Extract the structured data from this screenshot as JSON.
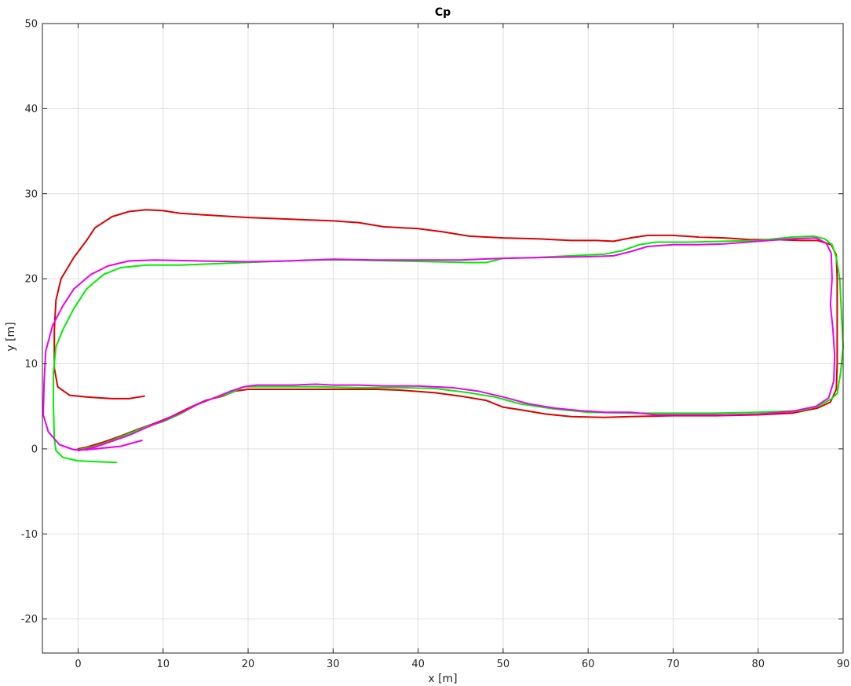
{
  "chart_data": {
    "type": "line",
    "title": "Cp",
    "xlabel": "x [m]",
    "ylabel": "y [m]",
    "xlim": [
      -4.2,
      90
    ],
    "ylim": [
      -24,
      50
    ],
    "xticks": [
      0,
      10,
      20,
      30,
      40,
      50,
      60,
      70,
      80,
      90
    ],
    "yticks": [
      -20,
      -10,
      0,
      10,
      20,
      30,
      40,
      50
    ],
    "grid": true,
    "legend": "none",
    "series": [
      {
        "color": "#dd0000",
        "points": [
          [
            7.8,
            6.2
          ],
          [
            6,
            5.9
          ],
          [
            4,
            5.9
          ],
          [
            1,
            6.1
          ],
          [
            -1,
            6.3
          ],
          [
            -2.4,
            7.3
          ],
          [
            -2.8,
            9.5
          ],
          [
            -2.8,
            14
          ],
          [
            -2.6,
            17.5
          ],
          [
            -2,
            20
          ],
          [
            -0.5,
            22.5
          ],
          [
            1,
            24.5
          ],
          [
            2,
            26
          ],
          [
            4,
            27.3
          ],
          [
            6,
            27.9
          ],
          [
            8,
            28.1
          ],
          [
            10,
            28
          ],
          [
            12,
            27.7
          ],
          [
            15,
            27.5
          ],
          [
            20,
            27.2
          ],
          [
            25,
            27.0
          ],
          [
            30,
            26.8
          ],
          [
            33,
            26.6
          ],
          [
            36,
            26.1
          ],
          [
            40,
            25.9
          ],
          [
            43,
            25.5
          ],
          [
            46,
            25
          ],
          [
            50,
            24.8
          ],
          [
            54,
            24.7
          ],
          [
            58,
            24.5
          ],
          [
            61,
            24.5
          ],
          [
            63,
            24.4
          ],
          [
            65,
            24.8
          ],
          [
            67,
            25.1
          ],
          [
            70,
            25.1
          ],
          [
            73,
            24.9
          ],
          [
            76,
            24.8
          ],
          [
            79,
            24.6
          ],
          [
            82,
            24.6
          ],
          [
            85,
            24.5
          ],
          [
            87,
            24.5
          ],
          [
            88.6,
            24.0
          ],
          [
            89.2,
            22.8
          ],
          [
            89.3,
            20
          ],
          [
            89.3,
            15
          ],
          [
            89.3,
            10
          ],
          [
            89.2,
            7
          ],
          [
            88.5,
            5.5
          ],
          [
            87,
            4.8
          ],
          [
            84,
            4.2
          ],
          [
            80,
            4.0
          ],
          [
            75,
            3.9
          ],
          [
            70,
            3.9
          ],
          [
            65,
            3.8
          ],
          [
            62,
            3.7
          ],
          [
            58,
            3.8
          ],
          [
            55,
            4.1
          ],
          [
            52,
            4.6
          ],
          [
            50,
            4.9
          ],
          [
            48,
            5.7
          ],
          [
            45,
            6.2
          ],
          [
            42,
            6.6
          ],
          [
            38,
            6.9
          ],
          [
            35,
            7.0
          ],
          [
            30,
            7.0
          ],
          [
            25,
            7.0
          ],
          [
            20,
            7.0
          ],
          [
            18.5,
            6.8
          ],
          [
            17,
            6.2
          ],
          [
            15,
            5.7
          ],
          [
            13,
            4.8
          ],
          [
            11,
            3.8
          ],
          [
            9,
            3.0
          ],
          [
            7,
            2.3
          ],
          [
            5,
            1.5
          ],
          [
            3,
            0.8
          ],
          [
            1,
            0.2
          ],
          [
            0,
            0
          ]
        ]
      },
      {
        "color": "#00ee00",
        "points": [
          [
            4.5,
            -1.6
          ],
          [
            2,
            -1.5
          ],
          [
            0,
            -1.4
          ],
          [
            -1.8,
            -1.0
          ],
          [
            -2.6,
            -0.2
          ],
          [
            -2.8,
            1.2
          ],
          [
            -2.9,
            5
          ],
          [
            -2.9,
            9
          ],
          [
            -2.6,
            12
          ],
          [
            -1.8,
            14
          ],
          [
            -0.5,
            16.5
          ],
          [
            1,
            18.8
          ],
          [
            3,
            20.5
          ],
          [
            5,
            21.3
          ],
          [
            8,
            21.6
          ],
          [
            12,
            21.6
          ],
          [
            17,
            21.8
          ],
          [
            22,
            22
          ],
          [
            27,
            22.2
          ],
          [
            32,
            22.2
          ],
          [
            37,
            22.1
          ],
          [
            42,
            22
          ],
          [
            46,
            21.9
          ],
          [
            48,
            21.9
          ],
          [
            50,
            22.4
          ],
          [
            54,
            22.5
          ],
          [
            58,
            22.7
          ],
          [
            62,
            22.9
          ],
          [
            64,
            23.3
          ],
          [
            66,
            24
          ],
          [
            68,
            24.3
          ],
          [
            72,
            24.3
          ],
          [
            76,
            24.4
          ],
          [
            80,
            24.5
          ],
          [
            84,
            24.9
          ],
          [
            86.5,
            25.0
          ],
          [
            87.8,
            24.7
          ],
          [
            88.7,
            24.0
          ],
          [
            89.2,
            22.5
          ],
          [
            89.6,
            20
          ],
          [
            89.8,
            16
          ],
          [
            90,
            12
          ],
          [
            89.7,
            9
          ],
          [
            89.3,
            6.5
          ],
          [
            88.5,
            5.8
          ],
          [
            87,
            5.0
          ],
          [
            85,
            4.5
          ],
          [
            80,
            4.3
          ],
          [
            75,
            4.2
          ],
          [
            70,
            4.2
          ],
          [
            65,
            4.2
          ],
          [
            60,
            4.3
          ],
          [
            56,
            4.7
          ],
          [
            52,
            5.3
          ],
          [
            49,
            6.1
          ],
          [
            46,
            6.6
          ],
          [
            42,
            7.1
          ],
          [
            38,
            7.2
          ],
          [
            33,
            7.2
          ],
          [
            28,
            7.3
          ],
          [
            22,
            7.3
          ],
          [
            19.5,
            7.3
          ],
          [
            18,
            6.6
          ],
          [
            16,
            6.0
          ],
          [
            14,
            5.2
          ],
          [
            12,
            4.1
          ],
          [
            10,
            3.2
          ],
          [
            8,
            2.6
          ],
          [
            6,
            1.8
          ],
          [
            4,
            1.0
          ],
          [
            2,
            0.3
          ],
          [
            0,
            -0.1
          ]
        ]
      },
      {
        "color": "#ee00ee",
        "points": [
          [
            7.5,
            1.0
          ],
          [
            5,
            0.3
          ],
          [
            3,
            0.1
          ],
          [
            1,
            -0.1
          ],
          [
            -0.5,
            -0.1
          ],
          [
            -2.2,
            0.5
          ],
          [
            -3.5,
            2
          ],
          [
            -4.1,
            4
          ],
          [
            -4.0,
            8
          ],
          [
            -3.8,
            11.5
          ],
          [
            -3,
            14.5
          ],
          [
            -1.8,
            16.8
          ],
          [
            -0.5,
            18.8
          ],
          [
            1.5,
            20.5
          ],
          [
            3.5,
            21.5
          ],
          [
            6,
            22.1
          ],
          [
            9,
            22.2
          ],
          [
            14,
            22.1
          ],
          [
            20,
            22.0
          ],
          [
            25,
            22.1
          ],
          [
            30,
            22.3
          ],
          [
            35,
            22.2
          ],
          [
            40,
            22.2
          ],
          [
            45,
            22.2
          ],
          [
            50,
            22.4
          ],
          [
            55,
            22.5
          ],
          [
            60,
            22.6
          ],
          [
            63,
            22.7
          ],
          [
            65,
            23.2
          ],
          [
            67,
            23.8
          ],
          [
            70,
            24.0
          ],
          [
            73,
            24.0
          ],
          [
            76,
            24.1
          ],
          [
            80,
            24.4
          ],
          [
            84,
            24.7
          ],
          [
            86.8,
            24.8
          ],
          [
            88,
            24.2
          ],
          [
            88.6,
            23
          ],
          [
            88.7,
            20
          ],
          [
            88.5,
            17
          ],
          [
            88.8,
            14
          ],
          [
            89.0,
            11
          ],
          [
            88.9,
            8
          ],
          [
            88.3,
            6.0
          ],
          [
            86.8,
            5.0
          ],
          [
            84,
            4.4
          ],
          [
            80,
            4.1
          ],
          [
            76,
            4.0
          ],
          [
            72,
            4.0
          ],
          [
            68,
            4.0
          ],
          [
            65,
            4.3
          ],
          [
            62,
            4.3
          ],
          [
            59,
            4.5
          ],
          [
            56,
            4.8
          ],
          [
            53,
            5.3
          ],
          [
            50,
            6.1
          ],
          [
            47,
            6.8
          ],
          [
            44,
            7.2
          ],
          [
            40,
            7.4
          ],
          [
            36,
            7.4
          ],
          [
            33,
            7.5
          ],
          [
            30,
            7.5
          ],
          [
            28,
            7.6
          ],
          [
            25,
            7.5
          ],
          [
            21,
            7.5
          ],
          [
            19.5,
            7.3
          ],
          [
            18,
            6.8
          ],
          [
            16,
            6.0
          ],
          [
            14,
            5.2
          ],
          [
            12,
            4.2
          ],
          [
            10,
            3.3
          ],
          [
            8,
            2.5
          ],
          [
            6,
            1.6
          ],
          [
            4,
            0.9
          ],
          [
            2,
            0.2
          ],
          [
            0,
            -0.2
          ]
        ]
      }
    ]
  }
}
